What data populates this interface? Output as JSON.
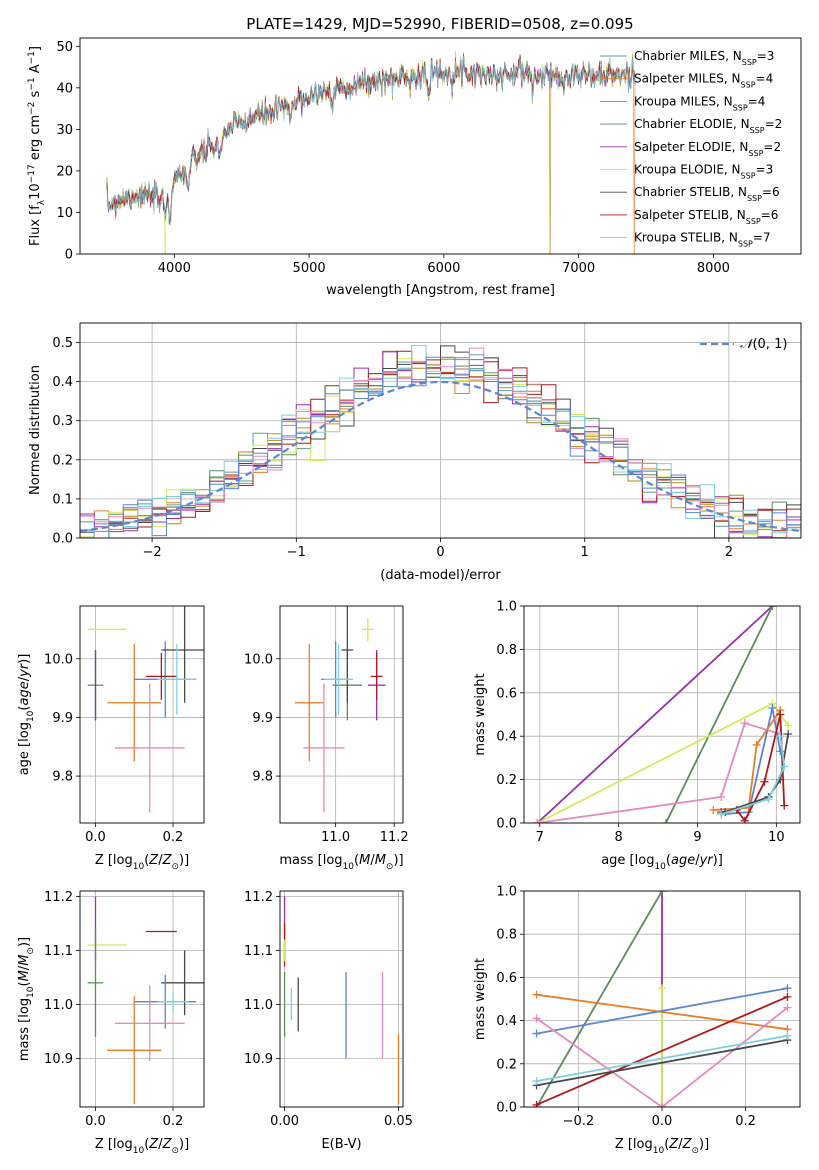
{
  "figure_title": "PLATE=1429, MJD=52990, FIBERID=0508, z=0.095",
  "colors": {
    "Chabrier MILES": "#5a9e9e",
    "Salpeter MILES": "#e87d2a",
    "Kroupa MILES": "#b08a1a",
    "Chabrier ELODIE": "#5f8a62",
    "Salpeter ELODIE": "#9b2fae",
    "Kroupa ELODIE": "#d7e85a",
    "Chabrier STELIB": "#4a4a4a",
    "Salpeter STELIB": "#b0191c",
    "Kroupa STELIB": "#7ecfe0",
    "blue": "#5b85d6",
    "pink": "#e58ac0",
    "normal": "#5b85d6"
  },
  "chart_data": [
    {
      "id": "spectrum",
      "type": "line",
      "title": "PLATE=1429, MJD=52990, FIBERID=0508, z=0.095",
      "xlabel": "wavelength [Angstrom, rest frame]",
      "ylabel": "Flux [f_λ 10^-17 erg cm^-2 s^-1 A^-1]",
      "xlim": [
        3300,
        8650
      ],
      "ylim": [
        0,
        52
      ],
      "xticks": [
        4000,
        5000,
        6000,
        7000,
        8000
      ],
      "yticks": [
        0,
        10,
        20,
        30,
        40,
        50
      ],
      "grid": false,
      "legend_position": "top-right",
      "legend": [
        {
          "label": "Chabrier MILES, N",
          "sub": "SSP",
          "tail": "=3",
          "color": "Chabrier MILES"
        },
        {
          "label": "Salpeter MILES, N",
          "sub": "SSP",
          "tail": "=4",
          "color": "Salpeter MILES"
        },
        {
          "label": "Kroupa MILES, N",
          "sub": "SSP",
          "tail": "=4",
          "color": "Kroupa MILES"
        },
        {
          "label": "Chabrier ELODIE, N",
          "sub": "SSP",
          "tail": "=2",
          "color": "Chabrier ELODIE"
        },
        {
          "label": "Salpeter ELODIE, N",
          "sub": "SSP",
          "tail": "=2",
          "color": "Salpeter ELODIE"
        },
        {
          "label": "Kroupa ELODIE, N",
          "sub": "SSP",
          "tail": "=3",
          "color": "Kroupa ELODIE"
        },
        {
          "label": "Chabrier STELIB, N",
          "sub": "SSP",
          "tail": "=6",
          "color": "Chabrier STELIB"
        },
        {
          "label": "Salpeter STELIB, N",
          "sub": "SSP",
          "tail": "=6",
          "color": "Salpeter STELIB"
        },
        {
          "label": "Kroupa STELIB, N",
          "sub": "SSP",
          "tail": "=7",
          "color": "Kroupa STELIB"
        }
      ],
      "continuum": [
        [
          3500,
          12
        ],
        [
          3600,
          13
        ],
        [
          3700,
          14
        ],
        [
          3800,
          14
        ],
        [
          3900,
          13
        ],
        [
          4000,
          18
        ],
        [
          4100,
          21
        ],
        [
          4200,
          24
        ],
        [
          4300,
          26
        ],
        [
          4400,
          30
        ],
        [
          4600,
          33
        ],
        [
          4800,
          35
        ],
        [
          5000,
          38
        ],
        [
          5200,
          40
        ],
        [
          5400,
          41
        ],
        [
          5600,
          42
        ],
        [
          5800,
          43
        ],
        [
          6000,
          44
        ],
        [
          6200,
          44
        ],
        [
          6400,
          43
        ],
        [
          6600,
          43
        ],
        [
          6800,
          43
        ],
        [
          7000,
          43
        ],
        [
          7200,
          43
        ],
        [
          7400,
          43
        ]
      ],
      "dips": [
        [
          3933,
          6
        ],
        [
          3968,
          8
        ],
        [
          4101,
          6
        ],
        [
          4340,
          5
        ],
        [
          4861,
          4
        ],
        [
          5175,
          5
        ],
        [
          5890,
          6
        ],
        [
          6563,
          -3
        ]
      ],
      "spikes": [
        {
          "series": "Kroupa ELODIE",
          "x": 3930
        },
        {
          "series": "Kroupa MILES",
          "x": 6790
        },
        {
          "series": "Salpeter MILES",
          "x": 7410
        }
      ]
    },
    {
      "id": "residuals",
      "type": "histogram",
      "xlabel": "(data-model)/error",
      "ylabel": "Normed distribution",
      "xlim": [
        -2.5,
        2.5
      ],
      "ylim": [
        0,
        0.55
      ],
      "xticks": [
        -2,
        -1,
        0,
        1,
        2
      ],
      "yticks": [
        0.0,
        0.1,
        0.2,
        0.3,
        0.4,
        0.5
      ],
      "grid": true,
      "bin_width": 0.1,
      "legend_position": "top-right",
      "normal_label": "N(0,1)",
      "normal_mean": 0,
      "normal_sigma": 1
    },
    {
      "id": "age_vs_Z",
      "type": "errorbar",
      "xlabel": "Z [log10(Z/Z_sun)]",
      "ylabel": "age [log10(age/yr)]",
      "xlim": [
        -0.04,
        0.28
      ],
      "ylim": [
        9.72,
        10.09
      ],
      "xticks": [
        0.0,
        0.2
      ],
      "yticks": [
        9.8,
        9.9,
        10.0
      ],
      "grid": true,
      "points": [
        {
          "color": "Kroupa ELODIE",
          "x": 0.03,
          "xerr": 0.05,
          "y": 10.05,
          "yerr": 0
        },
        {
          "color": "Chabrier ELODIE",
          "x": 0.0,
          "xerr": 0.02,
          "y": 9.955,
          "yerr": 0.06
        },
        {
          "color": "Salpeter ELODIE",
          "x": 0.0,
          "xerr": 0.0,
          "y": 9.955,
          "yerr": 0.06
        },
        {
          "color": "Salpeter MILES",
          "x": 0.1,
          "xerr": 0.07,
          "y": 9.925,
          "yerr": 0.1
        },
        {
          "color": "blue",
          "x": 0.18,
          "xerr": 0.08,
          "y": 9.965,
          "yerr": 0.065
        },
        {
          "color": "Salpeter STELIB",
          "x": 0.17,
          "xerr": 0.04,
          "y": 9.97,
          "yerr": 0.04
        },
        {
          "color": "Chabrier STELIB",
          "x": 0.23,
          "xerr": 0.06,
          "y": 10.015,
          "yerr": 0.09
        },
        {
          "color": "Kroupa STELIB",
          "x": 0.21,
          "xerr": 0.05,
          "y": 9.965,
          "yerr": 0.06
        },
        {
          "color": "pink",
          "x": 0.14,
          "xerr": 0.09,
          "y": 9.848,
          "yerr": 0.11
        }
      ]
    },
    {
      "id": "age_vs_mass",
      "type": "errorbar",
      "xlabel": "mass [log10(M/M_sun)]",
      "ylabel": "",
      "xlim": [
        10.81,
        11.23
      ],
      "ylim": [
        9.72,
        10.09
      ],
      "xticks": [
        11.0,
        11.2
      ],
      "yticks": [
        9.8,
        9.9,
        10.0
      ],
      "grid": true,
      "points": [
        {
          "color": "Kroupa ELODIE",
          "x": 11.11,
          "xerr": 0.02,
          "y": 10.05,
          "yerr": 0.02
        },
        {
          "color": "Salpeter ELODIE",
          "x": 11.14,
          "xerr": 0.03,
          "y": 9.955,
          "yerr": 0.06
        },
        {
          "color": "Chabrier ELODIE",
          "x": 11.04,
          "xerr": 0.05,
          "y": 9.955,
          "yerr": 0.06
        },
        {
          "color": "Salpeter MILES",
          "x": 10.91,
          "xerr": 0.05,
          "y": 9.925,
          "yerr": 0.1
        },
        {
          "color": "blue",
          "x": 11.0,
          "xerr": 0.05,
          "y": 9.965,
          "yerr": 0.065
        },
        {
          "color": "Salpeter STELIB",
          "x": 11.14,
          "xerr": 0.02,
          "y": 9.97,
          "yerr": 0.04
        },
        {
          "color": "Chabrier STELIB",
          "x": 11.04,
          "xerr": 0.02,
          "y": 10.015,
          "yerr": 0.09
        },
        {
          "color": "Kroupa STELIB",
          "x": 11.01,
          "xerr": 0.05,
          "y": 9.965,
          "yerr": 0.06
        },
        {
          "color": "pink",
          "x": 10.96,
          "xerr": 0.07,
          "y": 9.848,
          "yerr": 0.11
        }
      ]
    },
    {
      "id": "weight_vs_age",
      "type": "line",
      "xlabel": "age [log10(age/yr)]",
      "ylabel": "mass weight",
      "xlim": [
        6.8,
        10.3
      ],
      "ylim": [
        0,
        1.0
      ],
      "xticks": [
        7,
        8,
        9,
        10
      ],
      "yticks": [
        0.0,
        0.2,
        0.4,
        0.6,
        0.8,
        1.0
      ],
      "grid": true,
      "series": [
        {
          "color": "Salpeter ELODIE",
          "points": [
            [
              6.97,
              0.0
            ],
            [
              9.95,
              1.0
            ]
          ]
        },
        {
          "color": "Chabrier ELODIE",
          "points": [
            [
              8.6,
              0.0
            ],
            [
              9.95,
              1.0
            ]
          ]
        },
        {
          "color": "Kroupa ELODIE",
          "points": [
            [
              6.97,
              0.0
            ],
            [
              9.95,
              0.55
            ],
            [
              10.15,
              0.45
            ]
          ]
        },
        {
          "color": "pink",
          "points": [
            [
              6.97,
              0.0
            ],
            [
              9.3,
              0.12
            ],
            [
              9.6,
              0.46
            ],
            [
              10.05,
              0.41
            ]
          ]
        },
        {
          "color": "blue",
          "points": [
            [
              9.3,
              0.04
            ],
            [
              9.65,
              0.05
            ],
            [
              9.95,
              0.53
            ],
            [
              10.05,
              0.33
            ]
          ]
        },
        {
          "color": "Salpeter MILES",
          "points": [
            [
              9.2,
              0.06
            ],
            [
              9.65,
              0.07
            ],
            [
              9.75,
              0.36
            ],
            [
              10.05,
              0.52
            ]
          ]
        },
        {
          "color": "Salpeter STELIB",
          "points": [
            [
              9.3,
              0.05
            ],
            [
              9.5,
              0.06
            ],
            [
              9.6,
              0.01
            ],
            [
              9.85,
              0.19
            ],
            [
              10.05,
              0.5
            ],
            [
              10.1,
              0.08
            ]
          ]
        },
        {
          "color": "Chabrier STELIB",
          "points": [
            [
              9.35,
              0.05
            ],
            [
              9.9,
              0.12
            ],
            [
              10.05,
              0.2
            ],
            [
              10.15,
              0.41
            ]
          ]
        },
        {
          "color": "Kroupa STELIB",
          "points": [
            [
              9.3,
              0.04
            ],
            [
              9.9,
              0.11
            ],
            [
              10.1,
              0.26
            ],
            [
              10.05,
              0.4
            ]
          ]
        }
      ]
    },
    {
      "id": "mass_vs_Z",
      "type": "errorbar",
      "xlabel": "Z [log10(Z/Z_sun)]",
      "ylabel": "mass [log10(M/M_sun)]",
      "xlim": [
        -0.04,
        0.28
      ],
      "ylim": [
        10.81,
        11.21
      ],
      "xticks": [
        0.0,
        0.2
      ],
      "yticks": [
        10.9,
        11.0,
        11.1,
        11.2
      ],
      "grid": true,
      "points": [
        {
          "color": "Salpeter ELODIE",
          "x": 0.0,
          "xerr": 0.0,
          "y": 11.14,
          "yerr": 0.06
        },
        {
          "color": "Kroupa ELODIE",
          "x": 0.03,
          "xerr": 0.05,
          "y": 11.11,
          "yerr": 0
        },
        {
          "color": "Chabrier ELODIE",
          "x": 0.0,
          "xerr": 0.02,
          "y": 11.04,
          "yerr": 0.1
        },
        {
          "color": "Salpeter STELIB",
          "x": 0.17,
          "xerr": 0.04,
          "y": 11.135,
          "yerr": 0
        },
        {
          "color": "Chabrier STELIB",
          "x": 0.23,
          "xerr": 0.06,
          "y": 11.04,
          "yerr": 0.06
        },
        {
          "color": "blue",
          "x": 0.18,
          "xerr": 0.08,
          "y": 11.005,
          "yerr": 0.05
        },
        {
          "color": "Kroupa STELIB",
          "x": 0.2,
          "xerr": 0.04,
          "y": 11.005,
          "yerr": 0.02
        },
        {
          "color": "pink",
          "x": 0.14,
          "xerr": 0.09,
          "y": 10.965,
          "yerr": 0.07
        },
        {
          "color": "Salpeter MILES",
          "x": 0.1,
          "xerr": 0.07,
          "y": 10.915,
          "yerr": 0.1
        }
      ]
    },
    {
      "id": "mass_vs_ebv",
      "type": "errorbar",
      "xlabel": "E(B-V)",
      "ylabel": "",
      "xlim": [
        -0.002,
        0.052
      ],
      "ylim": [
        10.81,
        11.21
      ],
      "xticks": [
        0.0,
        0.05
      ],
      "yticks": [
        10.9,
        11.0,
        11.1,
        11.2
      ],
      "grid": true,
      "points": [
        {
          "color": "Salpeter ELODIE",
          "x": 0.0,
          "xerr": 0,
          "y": 11.14,
          "yerr": 0.06
        },
        {
          "color": "Salpeter STELIB",
          "x": 0.0,
          "xerr": 0,
          "y": 11.11,
          "yerr": 0.04
        },
        {
          "color": "Kroupa ELODIE",
          "x": 0.0,
          "xerr": 0,
          "y": 11.1,
          "yerr": 0.02
        },
        {
          "color": "Chabrier ELODIE",
          "x": 0.0,
          "xerr": 0,
          "y": 11.0,
          "yerr": 0.06
        },
        {
          "color": "Kroupa STELIB",
          "x": 0.003,
          "xerr": 0,
          "y": 11.0,
          "yerr": 0.03
        },
        {
          "color": "Chabrier STELIB",
          "x": 0.006,
          "xerr": 0,
          "y": 11.0,
          "yerr": 0.05
        },
        {
          "color": "blue",
          "x": 0.027,
          "xerr": 0,
          "y": 10.98,
          "yerr": 0.08
        },
        {
          "color": "pink",
          "x": 0.043,
          "xerr": 0,
          "y": 10.98,
          "yerr": 0.08
        },
        {
          "color": "Salpeter MILES",
          "x": 0.05,
          "xerr": 0,
          "y": 10.88,
          "yerr": 0.065
        }
      ]
    },
    {
      "id": "weight_vs_Z",
      "type": "line",
      "xlabel": "Z [log10(Z/Z_sun)]",
      "ylabel": "mass weight",
      "xlim": [
        -0.33,
        0.33
      ],
      "ylim": [
        0,
        1.0
      ],
      "xticks": [
        -0.2,
        0.0,
        0.2
      ],
      "yticks": [
        0.0,
        0.2,
        0.4,
        0.6,
        0.8,
        1.0
      ],
      "grid": true,
      "series": [
        {
          "color": "Salpeter ELODIE",
          "points": [
            [
              0.0,
              1.0
            ],
            [
              0.0,
              0.0
            ]
          ]
        },
        {
          "color": "Chabrier ELODIE",
          "points": [
            [
              -0.3,
              0.0
            ],
            [
              0.0,
              1.0
            ]
          ]
        },
        {
          "color": "Kroupa ELODIE",
          "points": [
            [
              0.0,
              0.55
            ],
            [
              0.0,
              0.0
            ]
          ]
        },
        {
          "color": "Salpeter MILES",
          "points": [
            [
              -0.3,
              0.52
            ],
            [
              0.3,
              0.36
            ]
          ]
        },
        {
          "color": "blue",
          "points": [
            [
              -0.3,
              0.34
            ],
            [
              0.3,
              0.55
            ]
          ]
        },
        {
          "color": "pink",
          "points": [
            [
              -0.3,
              0.41
            ],
            [
              0.0,
              0.0
            ],
            [
              0.3,
              0.46
            ]
          ]
        },
        {
          "color": "Salpeter STELIB",
          "points": [
            [
              -0.3,
              0.01
            ],
            [
              0.3,
              0.51
            ]
          ]
        },
        {
          "color": "Chabrier STELIB",
          "points": [
            [
              -0.3,
              0.1
            ],
            [
              0.3,
              0.31
            ]
          ]
        },
        {
          "color": "Kroupa STELIB",
          "points": [
            [
              -0.3,
              0.12
            ],
            [
              0.3,
              0.33
            ]
          ]
        }
      ]
    }
  ]
}
